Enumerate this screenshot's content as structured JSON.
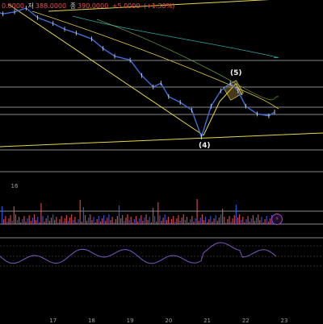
{
  "legend": {
    "open_value": "0.0000",
    "low_label": "저",
    "low_value": "388.0000",
    "close_label": "종",
    "close_value": "390.0000",
    "change_value": "+5.0000",
    "change_pct": "(+1.30%)",
    "change_color": "#ef5350"
  },
  "wave_labels": {
    "w4": "(4)",
    "w5": "(5)"
  },
  "x_axis": {
    "ticks": [
      "16",
      "17",
      "18",
      "19",
      "20",
      "21",
      "22",
      "23"
    ]
  },
  "indicator": {
    "badge_icon": "lightning-icon",
    "badge_symbol": "⚡"
  },
  "colors": {
    "background": "#000000",
    "price_line": "#3f6fd8",
    "trendline": "#e6d84a",
    "ma_fast": "#e0c33a",
    "ma_slow": "#2ea5a5",
    "up_volume": "#ef5350",
    "down_volume": "#2962ff",
    "oscillator": "#7e57c2"
  },
  "chart_data": {
    "type": "line",
    "price_series": [
      {
        "t": 15.4,
        "v": 412
      },
      {
        "t": 15.7,
        "v": 410
      },
      {
        "t": 16.0,
        "v": 411
      },
      {
        "t": 16.3,
        "v": 413
      },
      {
        "t": 16.6,
        "v": 408
      },
      {
        "t": 17.0,
        "v": 405
      },
      {
        "t": 17.3,
        "v": 402
      },
      {
        "t": 17.6,
        "v": 400
      },
      {
        "t": 18.0,
        "v": 397
      },
      {
        "t": 18.3,
        "v": 392
      },
      {
        "t": 18.6,
        "v": 388
      },
      {
        "t": 19.0,
        "v": 386
      },
      {
        "t": 19.3,
        "v": 378
      },
      {
        "t": 19.6,
        "v": 372
      },
      {
        "t": 19.8,
        "v": 374
      },
      {
        "t": 20.0,
        "v": 367
      },
      {
        "t": 20.3,
        "v": 364
      },
      {
        "t": 20.6,
        "v": 360
      },
      {
        "t": 20.85,
        "v": 346
      },
      {
        "t": 21.1,
        "v": 362
      },
      {
        "t": 21.35,
        "v": 370
      },
      {
        "t": 21.6,
        "v": 374
      },
      {
        "t": 21.8,
        "v": 370
      },
      {
        "t": 22.0,
        "v": 362
      },
      {
        "t": 22.3,
        "v": 358
      },
      {
        "t": 22.6,
        "v": 357
      },
      {
        "t": 22.75,
        "v": 359
      }
    ]
  }
}
